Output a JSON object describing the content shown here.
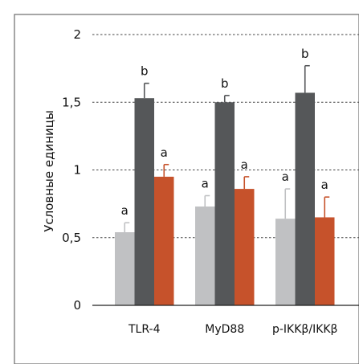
{
  "chart_data": {
    "type": "bar",
    "ylabel": "Условные единицы",
    "xlabel": "",
    "title": "",
    "ylim": [
      0,
      2
    ],
    "yticks": [
      "0",
      "0,5",
      "1",
      "1,5",
      "2"
    ],
    "grid": true,
    "categories": [
      "TLR-4",
      "MyD88",
      "p-IKKβ/IKKβ"
    ],
    "series": [
      {
        "color": "#c0c1c3",
        "values": [
          0.54,
          0.73,
          0.64
        ],
        "errors": [
          0.07,
          0.08,
          0.22
        ],
        "labels": [
          "a",
          "a",
          "a"
        ]
      },
      {
        "color": "#555759",
        "values": [
          1.53,
          1.5,
          1.57
        ],
        "errors": [
          0.11,
          0.05,
          0.2
        ],
        "labels": [
          "b",
          "b",
          "b"
        ]
      },
      {
        "color": "#c6522b",
        "values": [
          0.95,
          0.86,
          0.65
        ],
        "errors": [
          0.09,
          0.09,
          0.15
        ],
        "labels": [
          "a",
          "a",
          "a"
        ]
      }
    ]
  }
}
